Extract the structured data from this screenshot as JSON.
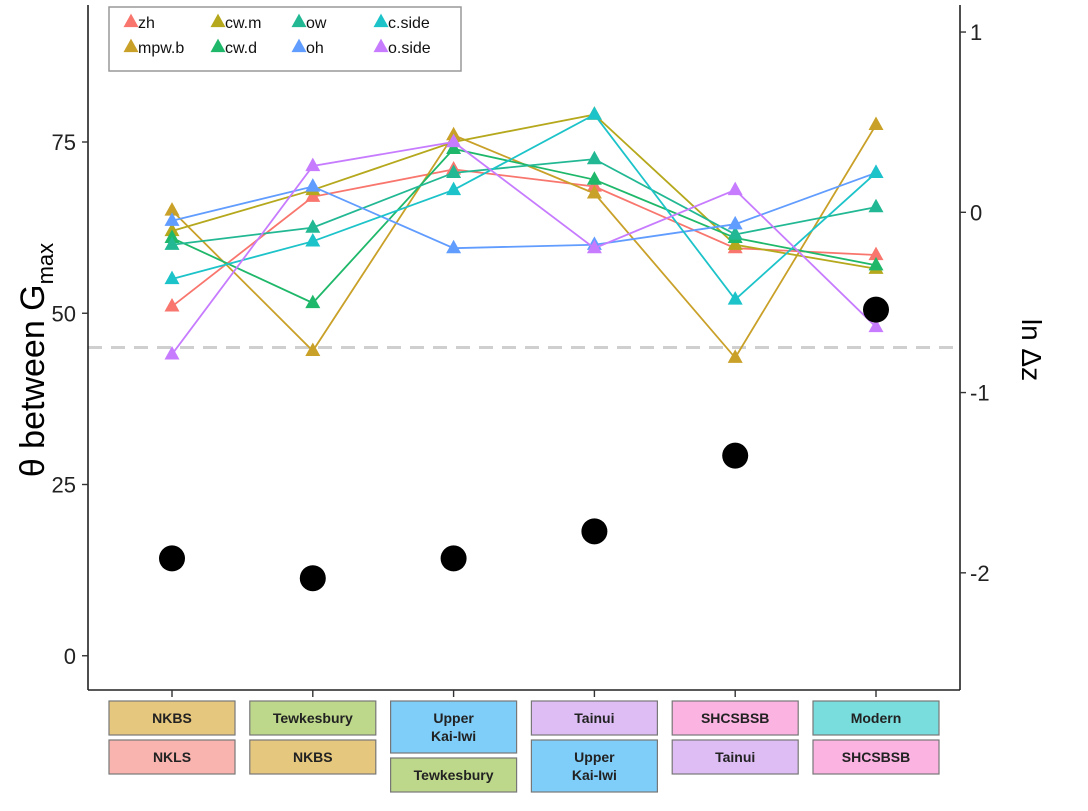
{
  "chart_data": {
    "type": "line",
    "x": [
      "1",
      "2",
      "3",
      "4",
      "5",
      "6"
    ],
    "ylabel": "θ between G",
    "ylabel_sub": "max",
    "ylim": [
      -5,
      95
    ],
    "yticks": [
      0,
      25,
      50,
      75
    ],
    "y2label": "ln Δz",
    "y2lim": [
      -2.65,
      1.15
    ],
    "y2ticks": [
      -2,
      -1,
      0,
      1
    ],
    "reference_line_y": 45,
    "grid": false,
    "legend_position": "top-left",
    "series": [
      {
        "name": "zh",
        "color": "#F8766D",
        "values": [
          51,
          67,
          71,
          68.5,
          59.5,
          58.5
        ]
      },
      {
        "name": "mpw.b",
        "color": "#C9A028",
        "values": [
          65,
          44.5,
          76,
          67.5,
          43.5,
          77.5
        ]
      },
      {
        "name": "cw.m",
        "color": "#B5A81C",
        "values": [
          62,
          68,
          75,
          79,
          60,
          56.5
        ]
      },
      {
        "name": "cw.d",
        "color": "#1FB86A",
        "values": [
          61,
          51.5,
          74,
          69.5,
          61,
          57
        ]
      },
      {
        "name": "ow",
        "color": "#22B893",
        "values": [
          60,
          62.5,
          70.5,
          72.5,
          61.5,
          65.5
        ]
      },
      {
        "name": "oh",
        "color": "#619CFF",
        "values": [
          63.5,
          68.5,
          59.5,
          60,
          63,
          70.5
        ]
      },
      {
        "name": "c.side",
        "color": "#1CC3C9",
        "values": [
          55,
          60.5,
          68,
          79,
          52,
          70.5
        ]
      },
      {
        "name": "o.side",
        "color": "#C77CFF",
        "values": [
          44,
          71.5,
          75,
          59.5,
          68,
          48
        ]
      }
    ],
    "points_y2": {
      "name": "ln Δz",
      "color": "#000000",
      "values": [
        -1.92,
        -2.03,
        -1.92,
        -1.77,
        -1.35,
        -0.54
      ]
    },
    "categories": [
      {
        "top": {
          "label": "NKBS",
          "color": "#E6C77E"
        },
        "bottom": {
          "label": "NKLS",
          "color": "#F9B4B0"
        }
      },
      {
        "top": {
          "label": "Tewkesbury",
          "color": "#BDD88A"
        },
        "bottom": {
          "label": "NKBS",
          "color": "#E6C77E"
        }
      },
      {
        "top": {
          "label": "Upper Kai-Iwi",
          "color": "#7FCEFA"
        },
        "bottom": {
          "label": "Tewkesbury",
          "color": "#BDD88A"
        }
      },
      {
        "top": {
          "label": "Tainui",
          "color": "#DEBDF5"
        },
        "bottom": {
          "label": "Upper Kai-Iwi",
          "color": "#7FCEFA"
        }
      },
      {
        "top": {
          "label": "SHCSBSB",
          "color": "#FBB3E2"
        },
        "bottom": {
          "label": "Tainui",
          "color": "#DEBDF5"
        }
      },
      {
        "top": {
          "label": "Modern",
          "color": "#79DCDD"
        },
        "bottom": {
          "label": "SHCSBSB",
          "color": "#FBB3E2"
        }
      }
    ]
  }
}
